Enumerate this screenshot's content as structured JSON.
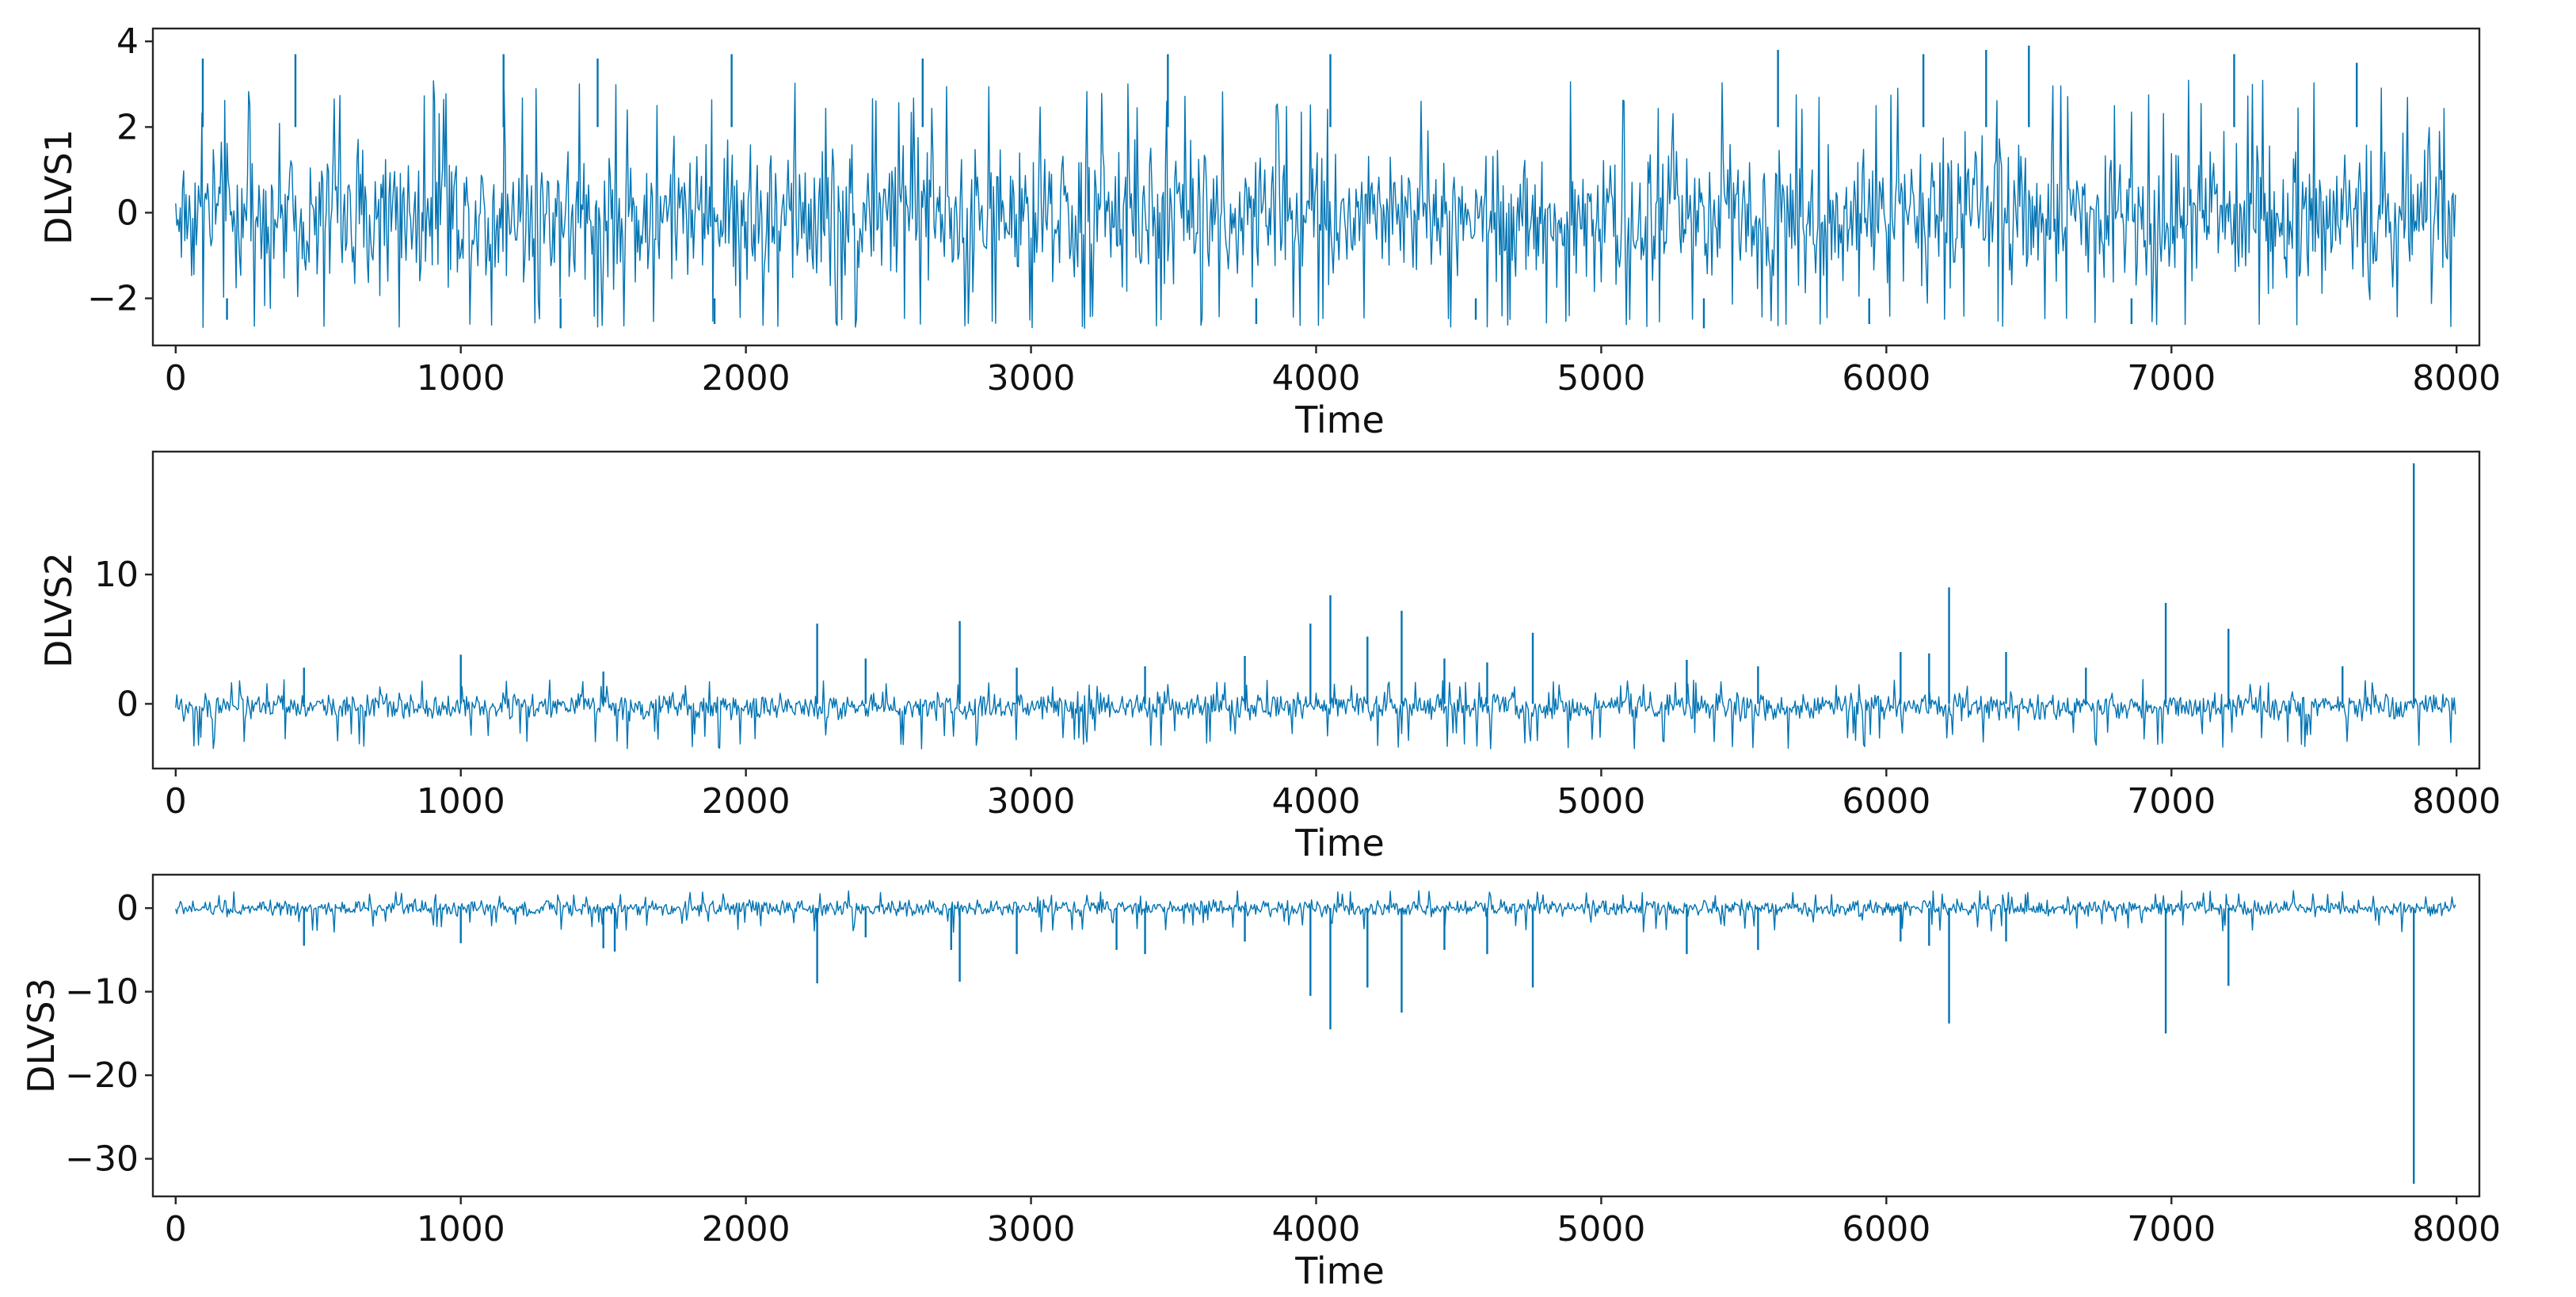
{
  "colors": {
    "series": "#0173b2",
    "axis": "#262626"
  },
  "chart_data": [
    {
      "type": "line",
      "xlabel": "Time",
      "ylabel": "DLVS1",
      "xlim": [
        -80,
        8080
      ],
      "ylim": [
        -3.1,
        4.3
      ],
      "xticks": [
        0,
        1000,
        2000,
        3000,
        4000,
        5000,
        6000,
        7000,
        8000
      ],
      "xtick_labels": [
        "0",
        "1000",
        "2000",
        "3000",
        "4000",
        "5000",
        "6000",
        "7000",
        "8000"
      ],
      "yticks": [
        -2,
        0,
        2,
        4
      ],
      "ytick_labels": [
        "−2",
        "0",
        "2",
        "4"
      ],
      "series": [
        {
          "x_range": [
            0,
            8000
          ],
          "n_points": 8000,
          "band": {
            "low": -2.4,
            "high": 2.3
          },
          "extremes": {
            "max": 3.9,
            "min": -2.7
          },
          "spikes": [
            [
              95,
              3.6
            ],
            [
              420,
              3.7
            ],
            [
              1150,
              3.7
            ],
            [
              1480,
              3.6
            ],
            [
              1950,
              3.7
            ],
            [
              2620,
              3.6
            ],
            [
              3480,
              3.7
            ],
            [
              4050,
              3.7
            ],
            [
              5620,
              3.8
            ],
            [
              6130,
              3.7
            ],
            [
              6350,
              3.8
            ],
            [
              6500,
              3.9
            ],
            [
              7220,
              3.7
            ],
            [
              7650,
              3.5
            ],
            [
              180,
              -2.5
            ],
            [
              1350,
              -2.7
            ],
            [
              1890,
              -2.6
            ],
            [
              3790,
              -2.6
            ],
            [
              4560,
              -2.5
            ],
            [
              5360,
              -2.7
            ],
            [
              5940,
              -2.6
            ],
            [
              6860,
              -2.6
            ]
          ]
        }
      ]
    },
    {
      "type": "line",
      "xlabel": "Time",
      "ylabel": "DLVS2",
      "xlim": [
        -80,
        8080
      ],
      "ylim": [
        -5.0,
        19.5
      ],
      "xticks": [
        0,
        1000,
        2000,
        3000,
        4000,
        5000,
        6000,
        7000,
        8000
      ],
      "xtick_labels": [
        "0",
        "1000",
        "2000",
        "3000",
        "4000",
        "5000",
        "6000",
        "7000",
        "8000"
      ],
      "yticks": [
        0,
        10
      ],
      "ytick_labels": [
        "0",
        "10"
      ],
      "series": [
        {
          "x_range": [
            0,
            8000
          ],
          "n_points": 8000,
          "band": {
            "low": -2.0,
            "high": 1.3
          },
          "extremes": {
            "max": 18.6,
            "min": -3.9
          },
          "spikes": [
            [
              450,
              2.8
            ],
            [
              1000,
              3.8
            ],
            [
              1500,
              2.5
            ],
            [
              2250,
              6.2
            ],
            [
              2420,
              3.5
            ],
            [
              2750,
              6.4
            ],
            [
              2950,
              2.8
            ],
            [
              3400,
              2.9
            ],
            [
              3750,
              3.7
            ],
            [
              3980,
              6.2
            ],
            [
              4050,
              8.4
            ],
            [
              4180,
              5.2
            ],
            [
              4300,
              7.2
            ],
            [
              4450,
              3.5
            ],
            [
              4600,
              3.2
            ],
            [
              4760,
              5.5
            ],
            [
              5300,
              3.4
            ],
            [
              5550,
              2.9
            ],
            [
              6050,
              4.0
            ],
            [
              6150,
              3.9
            ],
            [
              6220,
              9.0
            ],
            [
              6420,
              4.0
            ],
            [
              6700,
              2.8
            ],
            [
              6980,
              7.8
            ],
            [
              7200,
              5.8
            ],
            [
              7600,
              2.9
            ],
            [
              7850,
              18.6
            ]
          ]
        }
      ]
    },
    {
      "type": "line",
      "xlabel": "Time",
      "ylabel": "DLVS3",
      "xlim": [
        -80,
        8080
      ],
      "ylim": [
        -34.5,
        4.0
      ],
      "xticks": [
        0,
        1000,
        2000,
        3000,
        4000,
        5000,
        6000,
        7000,
        8000
      ],
      "xtick_labels": [
        "0",
        "1000",
        "2000",
        "3000",
        "4000",
        "5000",
        "6000",
        "7000",
        "8000"
      ],
      "yticks": [
        -30,
        -20,
        -10,
        0
      ],
      "ytick_labels": [
        "−30",
        "−20",
        "−10",
        "0"
      ],
      "series": [
        {
          "x_range": [
            0,
            8000
          ],
          "n_points": 8000,
          "band": {
            "low": -1.4,
            "high": 1.3
          },
          "extremes": {
            "max": 2.2,
            "min": -33.0
          },
          "spikes": [
            [
              450,
              -4.5
            ],
            [
              1000,
              -4.2
            ],
            [
              1500,
              -4.8
            ],
            [
              1540,
              -5.2
            ],
            [
              2250,
              -9.0
            ],
            [
              2420,
              -3.5
            ],
            [
              2720,
              -5.0
            ],
            [
              2750,
              -8.8
            ],
            [
              2950,
              -5.5
            ],
            [
              3300,
              -5.0
            ],
            [
              3400,
              -5.5
            ],
            [
              3750,
              -4.0
            ],
            [
              3980,
              -10.5
            ],
            [
              4050,
              -14.5
            ],
            [
              4180,
              -9.5
            ],
            [
              4300,
              -12.5
            ],
            [
              4450,
              -5.0
            ],
            [
              4600,
              -5.5
            ],
            [
              4760,
              -9.5
            ],
            [
              5300,
              -5.5
            ],
            [
              5550,
              -5.0
            ],
            [
              6050,
              -4.0
            ],
            [
              6150,
              -4.5
            ],
            [
              6220,
              -13.8
            ],
            [
              6420,
              -4.0
            ],
            [
              6980,
              -15.0
            ],
            [
              7200,
              -9.3
            ],
            [
              7850,
              -33.0
            ]
          ]
        }
      ]
    }
  ]
}
